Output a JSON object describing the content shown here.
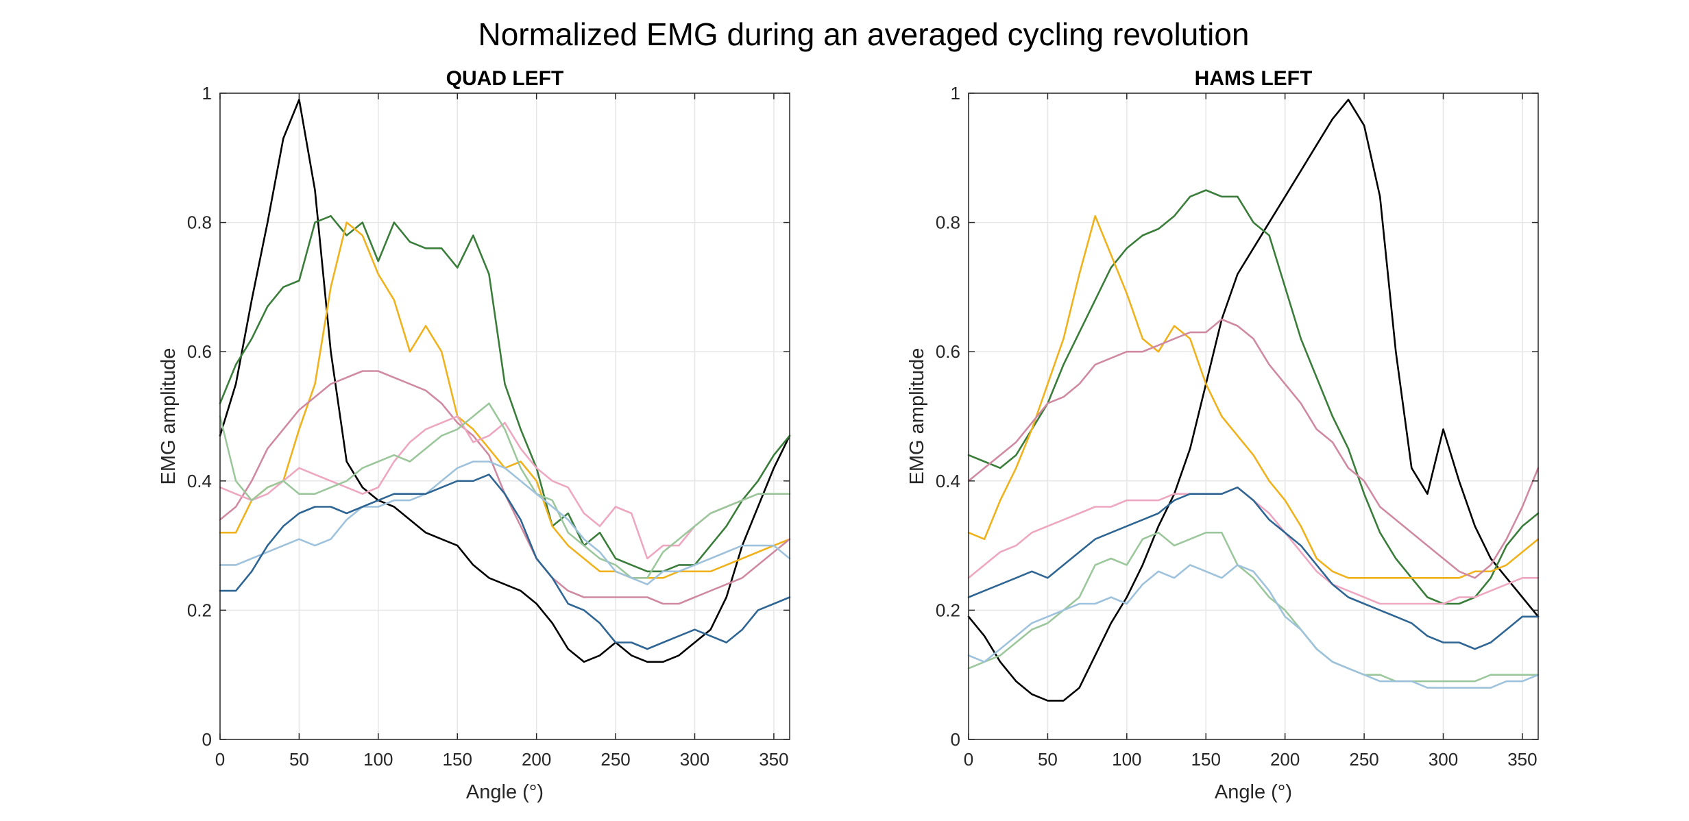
{
  "figure": {
    "title": "Normalized EMG during an averaged cycling revolution"
  },
  "chart_data": [
    {
      "type": "line",
      "title": "QUAD LEFT",
      "xlabel": "Angle (°)",
      "ylabel": "EMG amplitude",
      "xlim": [
        0,
        360
      ],
      "ylim": [
        0,
        1
      ],
      "xticks": [
        0,
        50,
        100,
        150,
        200,
        250,
        300,
        350
      ],
      "yticks": [
        0,
        0.2,
        0.4,
        0.6,
        0.8,
        1
      ],
      "grid": true,
      "x": [
        0,
        10,
        20,
        30,
        40,
        50,
        60,
        70,
        80,
        90,
        100,
        110,
        120,
        130,
        140,
        150,
        160,
        170,
        180,
        190,
        200,
        210,
        220,
        230,
        240,
        250,
        260,
        270,
        280,
        290,
        300,
        310,
        320,
        330,
        340,
        350,
        360
      ],
      "series": [
        {
          "color": "#000000",
          "values": [
            0.47,
            0.55,
            0.68,
            0.8,
            0.93,
            0.99,
            0.85,
            0.6,
            0.43,
            0.39,
            0.37,
            0.36,
            0.34,
            0.32,
            0.31,
            0.3,
            0.27,
            0.25,
            0.24,
            0.23,
            0.21,
            0.18,
            0.14,
            0.12,
            0.13,
            0.15,
            0.13,
            0.12,
            0.12,
            0.13,
            0.15,
            0.17,
            0.22,
            0.3,
            0.36,
            0.42,
            0.47
          ]
        },
        {
          "color": "#3a7d3a",
          "values": [
            0.52,
            0.58,
            0.62,
            0.67,
            0.7,
            0.71,
            0.8,
            0.81,
            0.78,
            0.8,
            0.74,
            0.8,
            0.77,
            0.76,
            0.76,
            0.73,
            0.78,
            0.72,
            0.55,
            0.48,
            0.42,
            0.33,
            0.35,
            0.3,
            0.32,
            0.28,
            0.27,
            0.26,
            0.26,
            0.27,
            0.27,
            0.3,
            0.33,
            0.37,
            0.4,
            0.44,
            0.47
          ]
        },
        {
          "color": "#f0b21c",
          "values": [
            0.32,
            0.32,
            0.37,
            0.39,
            0.4,
            0.48,
            0.55,
            0.7,
            0.8,
            0.78,
            0.72,
            0.68,
            0.6,
            0.64,
            0.6,
            0.5,
            0.48,
            0.45,
            0.42,
            0.43,
            0.4,
            0.33,
            0.3,
            0.28,
            0.26,
            0.26,
            0.25,
            0.25,
            0.25,
            0.26,
            0.26,
            0.26,
            0.27,
            0.28,
            0.29,
            0.3,
            0.31
          ]
        },
        {
          "color": "#cf8aa2",
          "values": [
            0.34,
            0.36,
            0.4,
            0.45,
            0.48,
            0.51,
            0.53,
            0.55,
            0.56,
            0.57,
            0.57,
            0.56,
            0.55,
            0.54,
            0.52,
            0.49,
            0.47,
            0.44,
            0.38,
            0.33,
            0.28,
            0.25,
            0.23,
            0.22,
            0.22,
            0.22,
            0.22,
            0.22,
            0.21,
            0.21,
            0.22,
            0.23,
            0.24,
            0.25,
            0.27,
            0.29,
            0.31
          ]
        },
        {
          "color": "#eda7c0",
          "values": [
            0.39,
            0.38,
            0.37,
            0.38,
            0.4,
            0.42,
            0.41,
            0.4,
            0.39,
            0.38,
            0.39,
            0.43,
            0.46,
            0.48,
            0.49,
            0.5,
            0.46,
            0.47,
            0.49,
            0.45,
            0.42,
            0.4,
            0.39,
            0.35,
            0.33,
            0.36,
            0.35,
            0.28,
            0.3,
            0.3,
            0.33,
            0.35,
            0.36,
            0.37,
            0.38,
            0.38,
            0.38
          ]
        },
        {
          "color": "#9cc79c",
          "values": [
            0.5,
            0.4,
            0.37,
            0.39,
            0.4,
            0.38,
            0.38,
            0.39,
            0.4,
            0.42,
            0.43,
            0.44,
            0.43,
            0.45,
            0.47,
            0.48,
            0.5,
            0.52,
            0.48,
            0.42,
            0.38,
            0.37,
            0.32,
            0.3,
            0.28,
            0.27,
            0.25,
            0.25,
            0.29,
            0.31,
            0.33,
            0.35,
            0.36,
            0.37,
            0.38,
            0.38,
            0.38
          ]
        },
        {
          "color": "#9fc2dc",
          "values": [
            0.27,
            0.27,
            0.28,
            0.29,
            0.3,
            0.31,
            0.3,
            0.31,
            0.34,
            0.36,
            0.36,
            0.37,
            0.37,
            0.38,
            0.4,
            0.42,
            0.43,
            0.43,
            0.42,
            0.4,
            0.38,
            0.36,
            0.34,
            0.31,
            0.29,
            0.26,
            0.25,
            0.24,
            0.26,
            0.26,
            0.27,
            0.28,
            0.29,
            0.3,
            0.3,
            0.3,
            0.28
          ]
        },
        {
          "color": "#2e6593",
          "values": [
            0.23,
            0.23,
            0.26,
            0.3,
            0.33,
            0.35,
            0.36,
            0.36,
            0.35,
            0.36,
            0.37,
            0.38,
            0.38,
            0.38,
            0.39,
            0.4,
            0.4,
            0.41,
            0.38,
            0.34,
            0.28,
            0.25,
            0.21,
            0.2,
            0.18,
            0.15,
            0.15,
            0.14,
            0.15,
            0.16,
            0.17,
            0.16,
            0.15,
            0.17,
            0.2,
            0.21,
            0.22
          ]
        }
      ]
    },
    {
      "type": "line",
      "title": "HAMS LEFT",
      "xlabel": "Angle (°)",
      "ylabel": "EMG amplitude",
      "xlim": [
        0,
        360
      ],
      "ylim": [
        0,
        1
      ],
      "xticks": [
        0,
        50,
        100,
        150,
        200,
        250,
        300,
        350
      ],
      "yticks": [
        0,
        0.2,
        0.4,
        0.6,
        0.8,
        1
      ],
      "grid": true,
      "x": [
        0,
        10,
        20,
        30,
        40,
        50,
        60,
        70,
        80,
        90,
        100,
        110,
        120,
        130,
        140,
        150,
        160,
        170,
        180,
        190,
        200,
        210,
        220,
        230,
        240,
        250,
        260,
        270,
        280,
        290,
        300,
        310,
        320,
        330,
        340,
        350,
        360
      ],
      "series": [
        {
          "color": "#000000",
          "values": [
            0.19,
            0.16,
            0.12,
            0.09,
            0.07,
            0.06,
            0.06,
            0.08,
            0.13,
            0.18,
            0.22,
            0.27,
            0.33,
            0.38,
            0.45,
            0.55,
            0.65,
            0.72,
            0.76,
            0.8,
            0.84,
            0.88,
            0.92,
            0.96,
            0.99,
            0.95,
            0.84,
            0.6,
            0.42,
            0.38,
            0.48,
            0.4,
            0.33,
            0.28,
            0.25,
            0.22,
            0.19
          ]
        },
        {
          "color": "#3a7d3a",
          "values": [
            0.44,
            0.43,
            0.42,
            0.44,
            0.48,
            0.52,
            0.58,
            0.63,
            0.68,
            0.73,
            0.76,
            0.78,
            0.79,
            0.81,
            0.84,
            0.85,
            0.84,
            0.84,
            0.8,
            0.78,
            0.7,
            0.62,
            0.56,
            0.5,
            0.45,
            0.38,
            0.32,
            0.28,
            0.25,
            0.22,
            0.21,
            0.21,
            0.22,
            0.25,
            0.3,
            0.33,
            0.35
          ]
        },
        {
          "color": "#f0b21c",
          "values": [
            0.32,
            0.31,
            0.37,
            0.42,
            0.48,
            0.55,
            0.62,
            0.72,
            0.81,
            0.75,
            0.69,
            0.62,
            0.6,
            0.64,
            0.62,
            0.55,
            0.5,
            0.47,
            0.44,
            0.4,
            0.37,
            0.33,
            0.28,
            0.26,
            0.25,
            0.25,
            0.25,
            0.25,
            0.25,
            0.25,
            0.25,
            0.25,
            0.26,
            0.26,
            0.27,
            0.29,
            0.31
          ]
        },
        {
          "color": "#cf8aa2",
          "values": [
            0.4,
            0.42,
            0.44,
            0.46,
            0.49,
            0.52,
            0.53,
            0.55,
            0.58,
            0.59,
            0.6,
            0.6,
            0.61,
            0.62,
            0.63,
            0.63,
            0.65,
            0.64,
            0.62,
            0.58,
            0.55,
            0.52,
            0.48,
            0.46,
            0.42,
            0.4,
            0.36,
            0.34,
            0.32,
            0.3,
            0.28,
            0.26,
            0.25,
            0.27,
            0.31,
            0.36,
            0.42
          ]
        },
        {
          "color": "#eda7c0",
          "values": [
            0.25,
            0.27,
            0.29,
            0.3,
            0.32,
            0.33,
            0.34,
            0.35,
            0.36,
            0.36,
            0.37,
            0.37,
            0.37,
            0.38,
            0.38,
            0.38,
            0.38,
            0.39,
            0.37,
            0.35,
            0.32,
            0.29,
            0.26,
            0.24,
            0.23,
            0.22,
            0.21,
            0.21,
            0.21,
            0.21,
            0.21,
            0.22,
            0.22,
            0.23,
            0.24,
            0.25,
            0.25
          ]
        },
        {
          "color": "#2e6593",
          "values": [
            0.22,
            0.23,
            0.24,
            0.25,
            0.26,
            0.25,
            0.27,
            0.29,
            0.31,
            0.32,
            0.33,
            0.34,
            0.35,
            0.37,
            0.38,
            0.38,
            0.38,
            0.39,
            0.37,
            0.34,
            0.32,
            0.3,
            0.27,
            0.24,
            0.22,
            0.21,
            0.2,
            0.19,
            0.18,
            0.16,
            0.15,
            0.15,
            0.14,
            0.15,
            0.17,
            0.19,
            0.19
          ]
        },
        {
          "color": "#9cc79c",
          "values": [
            0.11,
            0.12,
            0.13,
            0.15,
            0.17,
            0.18,
            0.2,
            0.22,
            0.27,
            0.28,
            0.27,
            0.31,
            0.32,
            0.3,
            0.31,
            0.32,
            0.32,
            0.27,
            0.25,
            0.22,
            0.2,
            0.17,
            0.14,
            0.12,
            0.11,
            0.1,
            0.1,
            0.09,
            0.09,
            0.09,
            0.09,
            0.09,
            0.09,
            0.1,
            0.1,
            0.1,
            0.1
          ]
        },
        {
          "color": "#9fc2dc",
          "values": [
            0.13,
            0.12,
            0.14,
            0.16,
            0.18,
            0.19,
            0.2,
            0.21,
            0.21,
            0.22,
            0.21,
            0.24,
            0.26,
            0.25,
            0.27,
            0.26,
            0.25,
            0.27,
            0.26,
            0.23,
            0.19,
            0.17,
            0.14,
            0.12,
            0.11,
            0.1,
            0.09,
            0.09,
            0.09,
            0.08,
            0.08,
            0.08,
            0.08,
            0.08,
            0.09,
            0.09,
            0.1
          ]
        }
      ]
    }
  ]
}
